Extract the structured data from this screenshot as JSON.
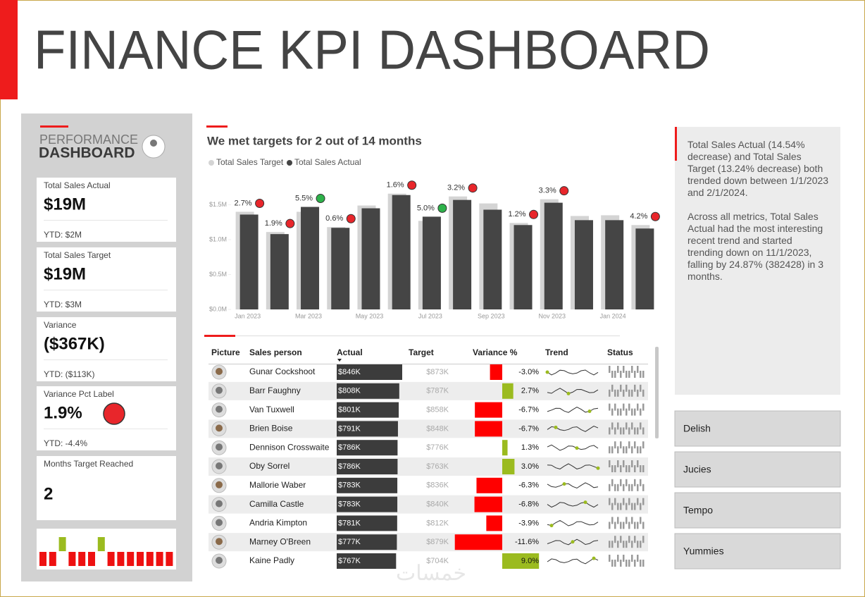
{
  "header": {
    "title": "FINANCE KPI DASHBOARD"
  },
  "sidebar": {
    "logo": {
      "line1": "PERFORMANCE",
      "line2": "DASHBOARD"
    },
    "kpis": [
      {
        "label": "Total Sales Actual",
        "value": "$19M",
        "ytd": "YTD: $2M"
      },
      {
        "label": "Total Sales Target",
        "value": "$19M",
        "ytd": "YTD: $3M"
      },
      {
        "label": "Variance",
        "value": "($367K)",
        "ytd": "YTD: ($113K)"
      },
      {
        "label": "Variance Pct Label",
        "value": "1.9%",
        "ytd": "YTD: -4.4%"
      },
      {
        "label": "Months Target Reached",
        "value": "2"
      }
    ]
  },
  "chart_data": {
    "type": "bar",
    "title": "We met targets for 2 out of 14 months",
    "categories": [
      "Jan 2023",
      null,
      "Mar 2023",
      null,
      "May 2023",
      null,
      "Jul 2023",
      null,
      "Sep 2023",
      null,
      "Nov 2023",
      null,
      "Jan 2024",
      null
    ],
    "series": [
      {
        "name": "Total Sales Target",
        "color": "#d4d4d4",
        "values": [
          1.4,
          1.11,
          1.4,
          1.18,
          1.49,
          1.66,
          1.27,
          1.62,
          1.52,
          1.24,
          1.58,
          1.34,
          1.35,
          1.21
        ]
      },
      {
        "name": "Total Sales Actual",
        "color": "#454545",
        "values": [
          1.36,
          1.08,
          1.47,
          1.17,
          1.45,
          1.64,
          1.33,
          1.57,
          1.43,
          1.21,
          1.53,
          1.28,
          1.28,
          1.16
        ]
      }
    ],
    "variance_values": [
      2.7,
      1.9,
      5.5,
      0.6,
      null,
      1.6,
      5.0,
      3.2,
      null,
      1.2,
      3.3,
      null,
      null,
      4.2
    ],
    "variance_value_labels": [
      "2.7%",
      "1.9%",
      "5.5%",
      "0.6%",
      null,
      "1.6%",
      "5.0%",
      "3.2%",
      null,
      "1.2%",
      "3.3%",
      null,
      null,
      "4.2%"
    ],
    "variance_colors": [
      "#e8262b",
      "#e8262b",
      "#2db24a",
      "#e8262b",
      null,
      "#e8262b",
      "#2db24a",
      "#e8262b",
      null,
      "#e8262b",
      "#e8262b",
      null,
      null,
      "#e8262b"
    ],
    "ylim": [
      0,
      1.9
    ],
    "yticks": [
      {
        "value": 0,
        "label": "$0.0M"
      },
      {
        "value": 0.5,
        "label": "$0.5M"
      },
      {
        "value": 1,
        "label": "$1.0M"
      },
      {
        "value": 1.5,
        "label": "$1.5M"
      }
    ]
  },
  "table": {
    "columns": [
      "Picture",
      "Sales person",
      "Actual",
      "Target",
      "Variance %",
      "Trend",
      "Status"
    ],
    "rows": [
      {
        "name": "Gunar Cockshoot",
        "actual": {
          "value": 846,
          "label": "$846K"
        },
        "target": "$873K",
        "variance": {
          "value": -3.0,
          "label": "-3.0%"
        }
      },
      {
        "name": "Barr Faughny",
        "actual": {
          "value": 808,
          "label": "$808K"
        },
        "target": "$787K",
        "variance": {
          "value": 2.7,
          "label": "2.7%"
        }
      },
      {
        "name": "Van Tuxwell",
        "actual": {
          "value": 801,
          "label": "$801K"
        },
        "target": "$858K",
        "variance": {
          "value": -6.7,
          "label": "-6.7%"
        }
      },
      {
        "name": "Brien Boise",
        "actual": {
          "value": 791,
          "label": "$791K"
        },
        "target": "$848K",
        "variance": {
          "value": -6.7,
          "label": "-6.7%"
        }
      },
      {
        "name": "Dennison Crosswaite",
        "actual": {
          "value": 786,
          "label": "$786K"
        },
        "target": "$776K",
        "variance": {
          "value": 1.3,
          "label": "1.3%"
        }
      },
      {
        "name": "Oby Sorrel",
        "actual": {
          "value": 786,
          "label": "$786K"
        },
        "target": "$763K",
        "variance": {
          "value": 3.0,
          "label": "3.0%"
        }
      },
      {
        "name": "Mallorie Waber",
        "actual": {
          "value": 783,
          "label": "$783K"
        },
        "target": "$836K",
        "variance": {
          "value": -6.3,
          "label": "-6.3%"
        }
      },
      {
        "name": "Camilla Castle",
        "actual": {
          "value": 783,
          "label": "$783K"
        },
        "target": "$840K",
        "variance": {
          "value": -6.8,
          "label": "-6.8%"
        }
      },
      {
        "name": "Andria Kimpton",
        "actual": {
          "value": 781,
          "label": "$781K"
        },
        "target": "$812K",
        "variance": {
          "value": -3.9,
          "label": "-3.9%"
        }
      },
      {
        "name": "Marney O'Breen",
        "actual": {
          "value": 777,
          "label": "$777K"
        },
        "target": "$879K",
        "variance": {
          "value": -11.6,
          "label": "-11.6%"
        }
      },
      {
        "name": "Kaine Padly",
        "actual": {
          "value": 767,
          "label": "$767K"
        },
        "target": "$704K",
        "variance": {
          "value": 9.0,
          "label": "9.0%"
        }
      }
    ]
  },
  "insights": {
    "paragraphs": [
      "Total Sales Actual (14.54% decrease) and Total Sales Target (13.24% decrease) both trended down between 1/1/2023 and 2/1/2024.",
      "Across all metrics, Total Sales Actual had the most interesting recent trend and started trending down on 11/1/2023, falling by 24.87% (382428) in 3 months."
    ]
  },
  "slicers": [
    "Delish",
    "Jucies",
    "Tempo",
    "Yummies"
  ],
  "watermark": "خمسات"
}
